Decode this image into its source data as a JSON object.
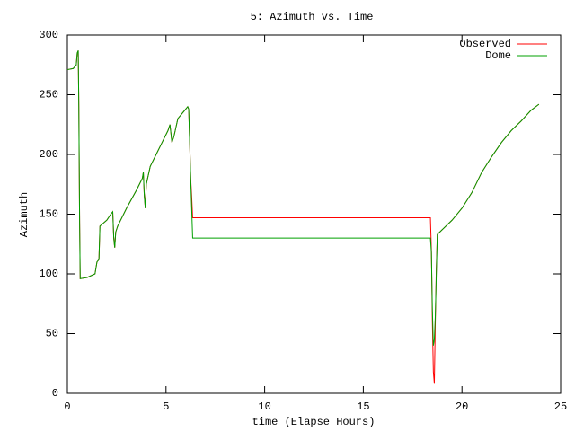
{
  "chart_data": {
    "type": "line",
    "title": "5: Azimuth vs. Time",
    "x_label": "time (Elapse Hours)",
    "y_label": "Azimuth",
    "x": [
      0,
      0.3,
      0.45,
      0.5,
      0.55,
      0.58,
      0.62,
      0.65,
      1.0,
      1.4,
      1.5,
      1.6,
      1.65,
      2.0,
      2.2,
      2.3,
      2.35,
      2.4,
      2.45,
      2.55,
      3.0,
      3.5,
      3.8,
      3.85,
      3.9,
      3.95,
      4.0,
      4.2,
      4.5,
      4.8,
      5.1,
      5.2,
      5.3,
      5.4,
      5.6,
      5.9,
      6.1,
      6.15,
      6.2,
      6.25,
      6.3,
      6.35,
      18.4,
      18.45,
      18.5,
      18.55,
      18.6,
      18.65,
      18.7,
      18.75,
      19.0,
      19.5,
      20.0,
      20.5,
      21.0,
      21.5,
      22.0,
      22.5,
      23.0,
      23.5,
      23.9
    ],
    "series": [
      {
        "name": "Observed",
        "color": "#ff0000",
        "values": [
          271,
          272,
          275,
          285,
          287,
          240,
          143,
          96,
          97,
          100,
          110,
          112,
          140,
          145,
          150,
          152,
          130,
          122,
          135,
          140,
          155,
          170,
          180,
          185,
          165,
          155,
          175,
          190,
          200,
          210,
          220,
          225,
          210,
          215,
          230,
          236,
          240,
          238,
          210,
          180,
          165,
          147,
          147,
          120,
          60,
          18,
          8,
          60,
          105,
          133,
          137,
          145,
          155,
          168,
          185,
          198,
          210,
          220,
          228,
          237,
          242
        ]
      },
      {
        "name": "Dome",
        "color": "#00a000",
        "values": [
          271,
          272,
          275,
          285,
          287,
          240,
          143,
          96,
          97,
          100,
          110,
          112,
          140,
          145,
          150,
          152,
          130,
          122,
          135,
          140,
          155,
          170,
          180,
          185,
          165,
          155,
          175,
          190,
          200,
          210,
          220,
          225,
          210,
          215,
          230,
          236,
          240,
          238,
          210,
          180,
          155,
          130,
          130,
          118,
          70,
          40,
          45,
          65,
          100,
          133,
          137,
          145,
          155,
          168,
          185,
          198,
          210,
          220,
          228,
          237,
          242
        ]
      }
    ],
    "xlim": [
      0,
      25
    ],
    "xticks": [
      0,
      5,
      10,
      15,
      20,
      25
    ],
    "ylim": [
      0,
      300
    ],
    "yticks": [
      0,
      50,
      100,
      150,
      200,
      250,
      300
    ],
    "legend": "top-right"
  }
}
